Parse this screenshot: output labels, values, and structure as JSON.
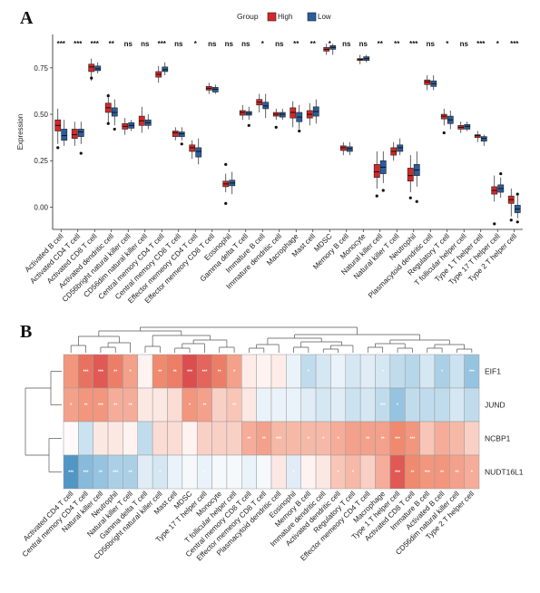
{
  "panel_a_letter": "A",
  "panel_b_letter": "B",
  "chart_data": [
    {
      "type": "box",
      "legend": {
        "title": "Group",
        "position": "top-center",
        "entries": [
          {
            "name": "High",
            "color": "#d62728"
          },
          {
            "name": "Low",
            "color": "#2a5d9f"
          }
        ]
      },
      "ylabel": "Expression",
      "ylim": [
        -0.12,
        0.93
      ],
      "yticks": [
        0.0,
        0.25,
        0.5,
        0.75
      ],
      "ytick_labels": [
        "0.00",
        "0.25",
        "0.50",
        "0.75"
      ],
      "grid": false,
      "categories": [
        "Activated B cell",
        "Activated CD4 T cell",
        "Activated CD8 T cell",
        "Activated dendritic cell",
        "CD56bright natural killer cell",
        "CD56dim natural killer cell",
        "Central memory CD4 T cell",
        "Central memory CD8 T cell",
        "Effector memeory CD4 T cell",
        "Effector memeory CD8 T cell",
        "Eosinophil",
        "Gamma delta T cell",
        "Immature  B cell",
        "Immature dendritic cell",
        "Macrophage",
        "Mast cell",
        "MDSC",
        "Memory B cell",
        "Monocyte",
        "Natural killer cell",
        "Natural killer T cell",
        "Neutrophil",
        "Plasmacytoid dendritic cell",
        "Regulatory T cell",
        "T follicular helper cell",
        "Type 1 T helper cell",
        "Type 17 T helper cell",
        "Type 2 T helper cell"
      ],
      "significance": [
        "***",
        "***",
        "***",
        "**",
        "ns",
        "ns",
        "***",
        "ns",
        "*",
        "ns",
        "ns",
        "ns",
        "*",
        "ns",
        "**",
        "**",
        "*",
        "ns",
        "ns",
        "**",
        "**",
        "***",
        "ns",
        "*",
        "ns",
        "***",
        "*",
        "***"
      ],
      "series": [
        {
          "name": "High",
          "color": "#d62728",
          "boxes": [
            [
              0.34,
              0.41,
              0.44,
              0.47,
              0.53
            ],
            [
              0.33,
              0.37,
              0.39,
              0.42,
              0.46
            ],
            [
              0.68,
              0.73,
              0.755,
              0.77,
              0.8
            ],
            [
              0.45,
              0.51,
              0.535,
              0.56,
              0.61
            ],
            [
              0.39,
              0.42,
              0.435,
              0.45,
              0.48
            ],
            [
              0.4,
              0.44,
              0.465,
              0.49,
              0.54
            ],
            [
              0.67,
              0.7,
              0.715,
              0.73,
              0.76
            ],
            [
              0.36,
              0.38,
              0.4,
              0.41,
              0.43
            ],
            [
              0.26,
              0.3,
              0.32,
              0.335,
              0.36
            ],
            [
              0.61,
              0.63,
              0.64,
              0.65,
              0.67
            ],
            [
              0.08,
              0.11,
              0.125,
              0.14,
              0.18
            ],
            [
              0.47,
              0.495,
              0.51,
              0.52,
              0.55
            ],
            [
              0.51,
              0.55,
              0.565,
              0.58,
              0.61
            ],
            [
              0.47,
              0.49,
              0.5,
              0.51,
              0.53
            ],
            [
              0.43,
              0.48,
              0.51,
              0.535,
              0.57
            ],
            [
              0.44,
              0.48,
              0.5,
              0.52,
              0.56
            ],
            [
              0.82,
              0.84,
              0.85,
              0.86,
              0.88
            ],
            [
              0.28,
              0.305,
              0.32,
              0.33,
              0.35
            ],
            [
              0.77,
              0.79,
              0.795,
              0.8,
              0.82
            ],
            [
              0.1,
              0.16,
              0.19,
              0.23,
              0.3
            ],
            [
              0.25,
              0.28,
              0.3,
              0.32,
              0.35
            ],
            [
              0.08,
              0.14,
              0.17,
              0.21,
              0.28
            ],
            [
              0.63,
              0.66,
              0.675,
              0.685,
              0.71
            ],
            [
              0.44,
              0.475,
              0.49,
              0.5,
              0.53
            ],
            [
              0.4,
              0.42,
              0.43,
              0.44,
              0.46
            ],
            [
              0.35,
              0.375,
              0.385,
              0.39,
              0.41
            ],
            [
              0.03,
              0.07,
              0.09,
              0.11,
              0.17
            ],
            [
              -0.05,
              0.02,
              0.04,
              0.06,
              0.1
            ]
          ]
        },
        {
          "name": "Low",
          "color": "#2a5d9f",
          "boxes": [
            [
              0.33,
              0.36,
              0.385,
              0.42,
              0.47
            ],
            [
              0.34,
              0.38,
              0.405,
              0.42,
              0.46
            ],
            [
              0.72,
              0.735,
              0.745,
              0.76,
              0.78
            ],
            [
              0.44,
              0.49,
              0.51,
              0.535,
              0.58
            ],
            [
              0.41,
              0.425,
              0.44,
              0.455,
              0.47
            ],
            [
              0.42,
              0.44,
              0.455,
              0.47,
              0.5
            ],
            [
              0.71,
              0.73,
              0.74,
              0.755,
              0.78
            ],
            [
              0.36,
              0.38,
              0.395,
              0.405,
              0.43
            ],
            [
              0.23,
              0.27,
              0.3,
              0.32,
              0.37
            ],
            [
              0.61,
              0.62,
              0.635,
              0.645,
              0.66
            ],
            [
              0.07,
              0.115,
              0.13,
              0.145,
              0.19
            ],
            [
              0.47,
              0.495,
              0.505,
              0.515,
              0.54
            ],
            [
              0.48,
              0.53,
              0.545,
              0.565,
              0.61
            ],
            [
              0.47,
              0.485,
              0.5,
              0.51,
              0.53
            ],
            [
              0.42,
              0.46,
              0.485,
              0.51,
              0.55
            ],
            [
              0.45,
              0.49,
              0.515,
              0.54,
              0.58
            ],
            [
              0.82,
              0.85,
              0.86,
              0.87,
              0.88
            ],
            [
              0.28,
              0.3,
              0.315,
              0.325,
              0.35
            ],
            [
              0.78,
              0.79,
              0.8,
              0.81,
              0.82
            ],
            [
              0.13,
              0.18,
              0.215,
              0.25,
              0.3
            ],
            [
              0.28,
              0.3,
              0.32,
              0.335,
              0.37
            ],
            [
              0.11,
              0.17,
              0.2,
              0.23,
              0.3
            ],
            [
              0.63,
              0.65,
              0.665,
              0.68,
              0.71
            ],
            [
              0.42,
              0.45,
              0.47,
              0.49,
              0.52
            ],
            [
              0.41,
              0.42,
              0.435,
              0.445,
              0.46
            ],
            [
              0.33,
              0.355,
              0.37,
              0.38,
              0.39
            ],
            [
              0.05,
              0.08,
              0.1,
              0.12,
              0.16
            ],
            [
              -0.06,
              -0.03,
              -0.01,
              0.01,
              0.06
            ]
          ]
        }
      ],
      "outliers": {
        "High": [
          [
            0,
            0.32
          ],
          [
            2,
            0.695
          ],
          [
            3,
            0.6
          ],
          [
            3,
            0.45
          ],
          [
            10,
            0.02
          ],
          [
            10,
            0.23
          ],
          [
            13,
            0.43
          ],
          [
            19,
            0.06
          ],
          [
            21,
            0.05
          ],
          [
            23,
            0.4
          ],
          [
            26,
            -0.09
          ],
          [
            27,
            -0.07
          ]
        ],
        "Low": [
          [
            1,
            0.29
          ],
          [
            3,
            0.42
          ],
          [
            7,
            0.34
          ],
          [
            11,
            0.44
          ],
          [
            14,
            0.41
          ],
          [
            19,
            0.09
          ],
          [
            21,
            0.03
          ],
          [
            26,
            0.18
          ],
          [
            27,
            0.07
          ],
          [
            27,
            -0.08
          ]
        ]
      }
    },
    {
      "type": "heatmap",
      "rows": [
        "EIF1",
        "JUND",
        "NCBP1",
        "NUDT16L1"
      ],
      "columns": [
        "Activated CD4 T cell",
        "Central memory CD4 T cell",
        "Natural killer cell",
        "Neutrophil",
        "Natural killer T cell",
        "Gamma delta T cell",
        "CD56bright natural killer cell",
        "Mast cell",
        "MDSC",
        "Type 17 T helper cell",
        "Monocyte",
        "T follicular helper cell",
        "Central memory CD8 T cell",
        "Effector memeory CD8 T cell",
        "Plasmacytoid dendritic cell",
        "Eosinophil",
        "Memory B cell",
        "Immature dendritic cell",
        "Activated dendritic cell",
        "Regulatory T cell",
        "Effector memeory CD4 T cell",
        "Macrophage",
        "Type 1 T helper cell",
        "Activated CD8 T cell",
        "Immature  B cell",
        "Activated B cell",
        "CD56dim natural killer cell",
        "Type 2 T helper cell"
      ],
      "values": [
        [
          0.45,
          0.6,
          0.7,
          0.55,
          0.4,
          0.05,
          0.5,
          0.55,
          0.75,
          0.65,
          0.55,
          0.4,
          0.08,
          0.05,
          0.08,
          -0.1,
          -0.3,
          -0.2,
          -0.1,
          -0.2,
          -0.15,
          -0.2,
          -0.3,
          -0.35,
          -0.2,
          -0.4,
          -0.25,
          -0.5
        ],
        [
          0.4,
          0.45,
          0.45,
          0.35,
          0.35,
          0.1,
          0.1,
          0.15,
          0.45,
          0.4,
          0.2,
          0.25,
          0.1,
          -0.1,
          -0.1,
          -0.1,
          -0.15,
          -0.2,
          -0.15,
          -0.25,
          -0.2,
          -0.3,
          -0.5,
          -0.3,
          -0.3,
          -0.3,
          -0.2,
          -0.3
        ],
        [
          0.02,
          -0.25,
          0.1,
          0.1,
          0.05,
          -0.3,
          0.15,
          0.15,
          0.05,
          0.2,
          0.2,
          0.2,
          0.35,
          0.4,
          0.3,
          0.3,
          0.3,
          0.3,
          0.35,
          0.4,
          0.4,
          0.4,
          0.5,
          0.45,
          0.25,
          0.35,
          0.3,
          0.2
        ],
        [
          -0.75,
          -0.55,
          -0.5,
          -0.4,
          -0.4,
          -0.15,
          -0.2,
          -0.1,
          -0.05,
          -0.1,
          -0.05,
          -0.05,
          -0.1,
          -0.05,
          0.1,
          -0.15,
          0.05,
          0.1,
          0.25,
          0.3,
          0.2,
          0.35,
          0.7,
          0.5,
          0.45,
          0.45,
          0.4,
          0.35
        ]
      ],
      "stars": [
        [
          "",
          "***",
          "***",
          "**",
          "*",
          "",
          "**",
          "**",
          "***",
          "***",
          "**",
          "*",
          "",
          "",
          "",
          "",
          "*",
          "",
          "",
          "",
          "",
          "*",
          "",
          "",
          "",
          "*",
          "",
          "***"
        ],
        [
          "*",
          "**",
          "***",
          "**",
          "**",
          "",
          "",
          "",
          "*",
          "**",
          "",
          "**",
          "",
          "",
          "",
          "",
          "",
          "",
          "",
          "",
          "",
          "***",
          "*",
          "",
          "",
          "",
          "",
          ""
        ],
        [
          "",
          "",
          "",
          "",
          "",
          "",
          "",
          "",
          "",
          "",
          "",
          "",
          "**",
          "**",
          "***",
          "",
          "*",
          "*",
          "*",
          "",
          "**",
          "**",
          "***",
          "***",
          "",
          "",
          "",
          ""
        ],
        [
          "***",
          "***",
          "**",
          "***",
          "**",
          "",
          "*",
          "",
          "",
          "*",
          "",
          "",
          "",
          "",
          "",
          "*",
          "",
          "",
          "*",
          "*",
          "",
          "",
          "***",
          "**",
          "***",
          "**",
          "**",
          "*"
        ]
      ]
    }
  ]
}
